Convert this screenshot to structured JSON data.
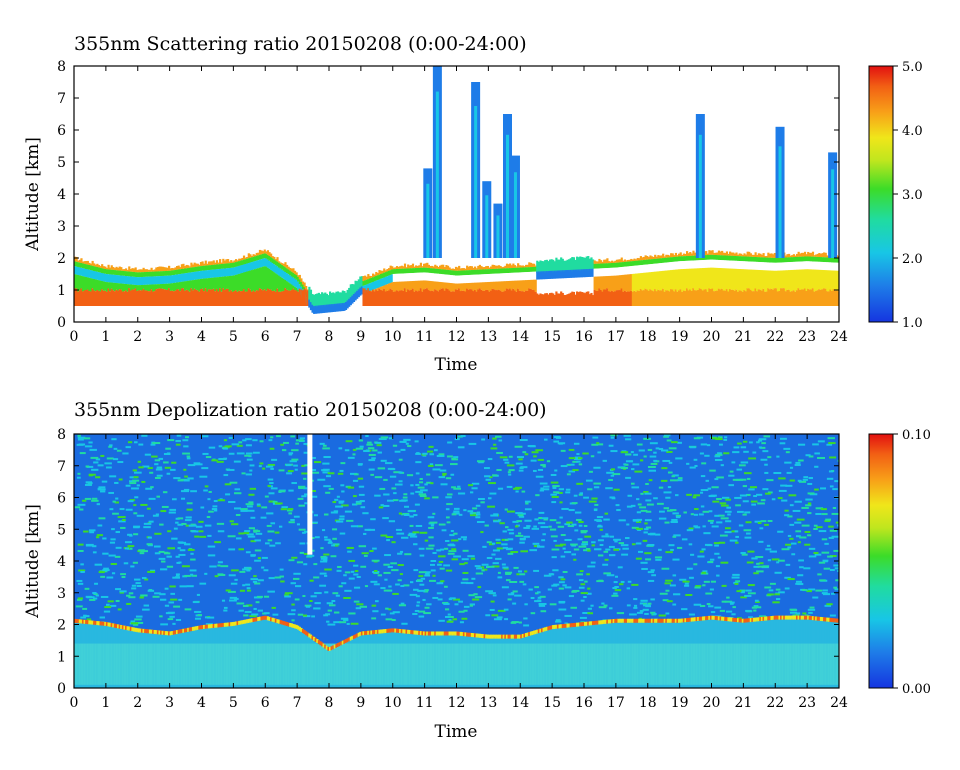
{
  "chart_data": [
    {
      "type": "heatmap",
      "title": "355nm Scattering ratio  20150208 (0:00-24:00)",
      "xlabel": "Time",
      "ylabel": "Altitude [km]",
      "xlim": [
        0,
        24
      ],
      "ylim": [
        0,
        8
      ],
      "xticks": [
        "0",
        "1",
        "2",
        "3",
        "4",
        "5",
        "6",
        "7",
        "8",
        "9",
        "10",
        "11",
        "12",
        "13",
        "14",
        "15",
        "16",
        "17",
        "18",
        "19",
        "20",
        "21",
        "22",
        "23",
        "24"
      ],
      "yticks": [
        "0",
        "1",
        "2",
        "3",
        "4",
        "5",
        "6",
        "7",
        "8"
      ],
      "colorbar": {
        "min": 1.0,
        "max": 5.0,
        "ticks": [
          "1.0",
          "2.0",
          "3.0",
          "4.0",
          "5.0"
        ]
      },
      "boundary_layer_top_km": [
        [
          0,
          1.95
        ],
        [
          1,
          1.7
        ],
        [
          2,
          1.6
        ],
        [
          3,
          1.65
        ],
        [
          4,
          1.8
        ],
        [
          5,
          1.9
        ],
        [
          6,
          2.2
        ],
        [
          7,
          1.5
        ],
        [
          7.5,
          0.7
        ],
        [
          8.5,
          0.8
        ],
        [
          9,
          1.3
        ],
        [
          10,
          1.7
        ],
        [
          11,
          1.75
        ],
        [
          12,
          1.65
        ],
        [
          13,
          1.7
        ],
        [
          14,
          1.75
        ],
        [
          15,
          1.8
        ],
        [
          16,
          1.85
        ],
        [
          17,
          1.9
        ],
        [
          18,
          2.0
        ],
        [
          19,
          2.1
        ],
        [
          20,
          2.15
        ],
        [
          21,
          2.1
        ],
        [
          22,
          2.05
        ],
        [
          23,
          2.1
        ],
        [
          24,
          2.05
        ]
      ],
      "cloud_columns": [
        {
          "time": 11.1,
          "top_km": 4.8
        },
        {
          "time": 11.4,
          "top_km": 8.0
        },
        {
          "time": 12.6,
          "top_km": 7.5
        },
        {
          "time": 12.95,
          "top_km": 4.4
        },
        {
          "time": 13.3,
          "top_km": 3.7
        },
        {
          "time": 13.6,
          "top_km": 6.5
        },
        {
          "time": 13.85,
          "top_km": 5.2
        },
        {
          "time": 19.65,
          "top_km": 6.5
        },
        {
          "time": 22.15,
          "top_km": 6.1
        },
        {
          "time": 23.8,
          "top_km": 5.3
        }
      ]
    },
    {
      "type": "heatmap",
      "title": "355nm Depolization ratio  20150208 (0:00-24:00)",
      "xlabel": "Time",
      "ylabel": "Altitude [km]",
      "xlim": [
        0,
        24
      ],
      "ylim": [
        0,
        8
      ],
      "xticks": [
        "0",
        "1",
        "2",
        "3",
        "4",
        "5",
        "6",
        "7",
        "8",
        "9",
        "10",
        "11",
        "12",
        "13",
        "14",
        "15",
        "16",
        "17",
        "18",
        "19",
        "20",
        "21",
        "22",
        "23",
        "24"
      ],
      "yticks": [
        "0",
        "1",
        "2",
        "3",
        "4",
        "5",
        "6",
        "7",
        "8"
      ],
      "colorbar": {
        "min": 0.0,
        "max": 0.1,
        "ticks": [
          "0.00",
          "0.10"
        ]
      },
      "boundary_layer_top_km": [
        [
          0,
          2.1
        ],
        [
          1,
          2.0
        ],
        [
          2,
          1.8
        ],
        [
          3,
          1.7
        ],
        [
          4,
          1.9
        ],
        [
          5,
          2.0
        ],
        [
          6,
          2.2
        ],
        [
          7,
          1.9
        ],
        [
          8,
          1.2
        ],
        [
          9,
          1.7
        ],
        [
          10,
          1.8
        ],
        [
          11,
          1.7
        ],
        [
          12,
          1.7
        ],
        [
          13,
          1.6
        ],
        [
          14,
          1.6
        ],
        [
          15,
          1.9
        ],
        [
          16,
          2.0
        ],
        [
          17,
          2.1
        ],
        [
          18,
          2.1
        ],
        [
          19,
          2.1
        ],
        [
          20,
          2.2
        ],
        [
          21,
          2.1
        ],
        [
          22,
          2.2
        ],
        [
          23,
          2.2
        ],
        [
          24,
          2.1
        ]
      ],
      "data_gap": {
        "time": 7.4,
        "from_km": 4.2,
        "to_km": 8.0
      }
    }
  ]
}
